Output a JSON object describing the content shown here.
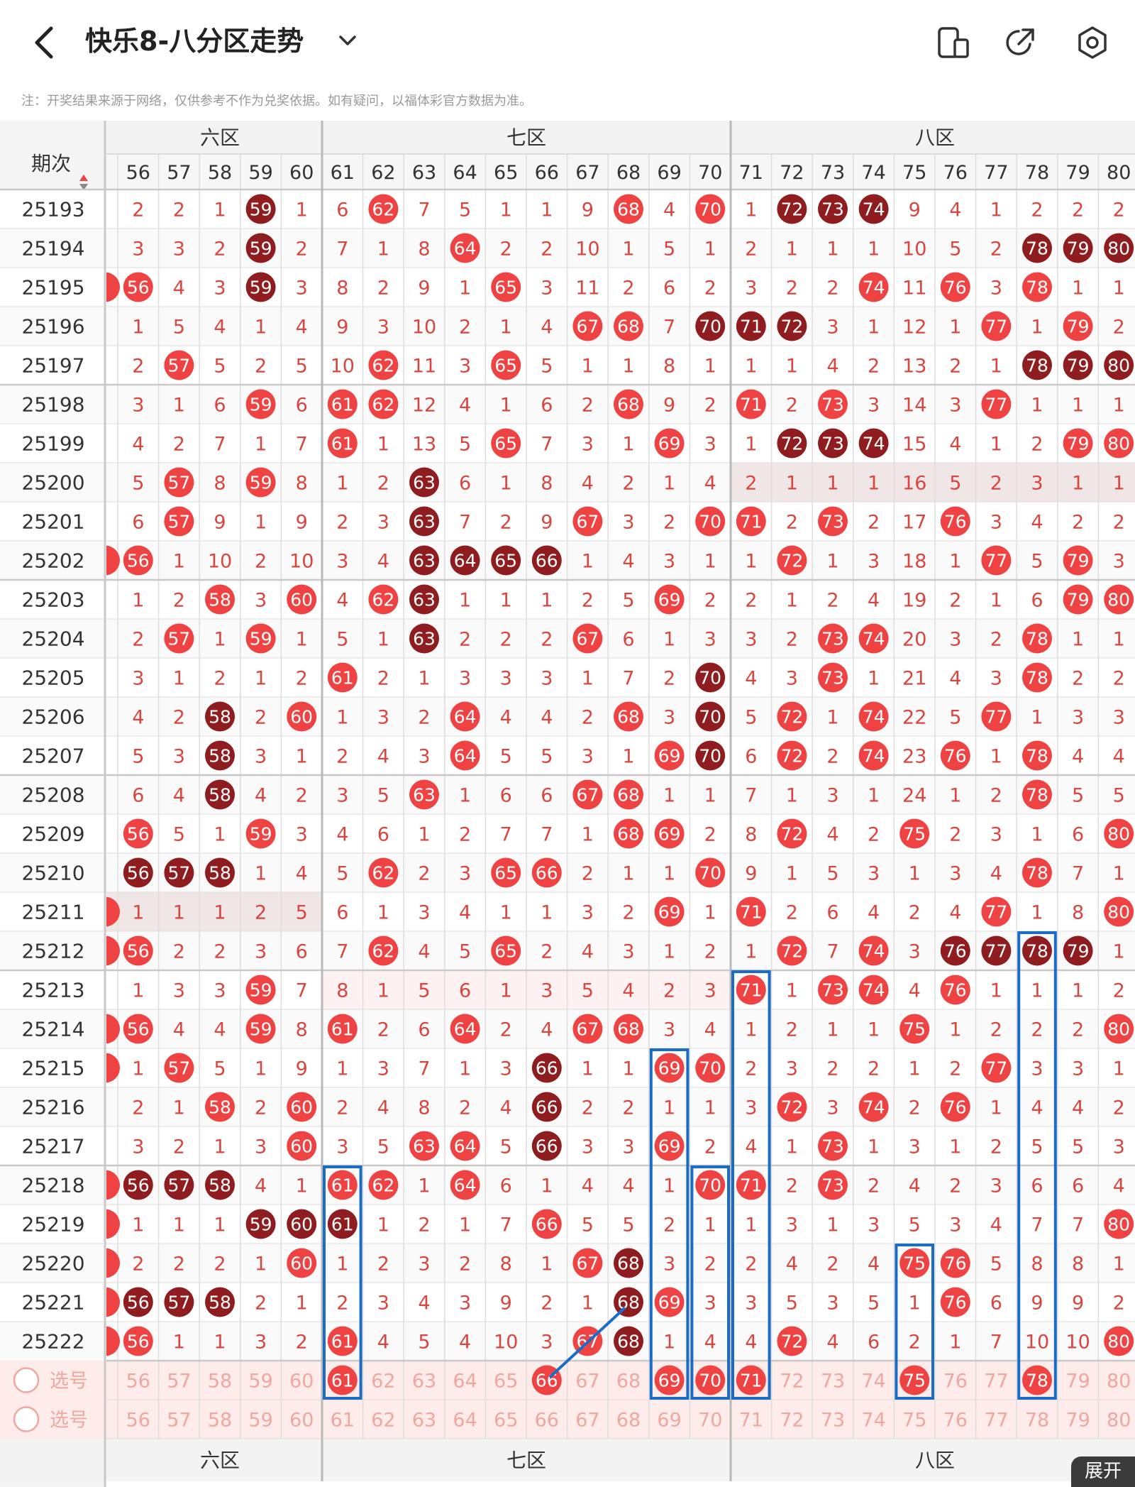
{
  "header": {
    "title": "快乐8-八分区走势",
    "notice": "注：开奖结果来源于网络，仅供参考不作为兑奖依据。如有疑问，以福体彩官方数据为准。",
    "icons": [
      "back-icon",
      "chevron-down-icon",
      "device-icon",
      "share-icon",
      "settings-icon"
    ]
  },
  "table": {
    "col_header_label": "期次",
    "zones": [
      {
        "label": "六区",
        "start": 56,
        "end": 60
      },
      {
        "label": "七区",
        "start": 61,
        "end": 70
      },
      {
        "label": "八区",
        "start": 71,
        "end": 80
      }
    ],
    "numbers": [
      56,
      57,
      58,
      59,
      60,
      61,
      62,
      63,
      64,
      65,
      66,
      67,
      68,
      69,
      70,
      71,
      72,
      73,
      74,
      75,
      76,
      77,
      78,
      79,
      80
    ],
    "rows": [
      {
        "period": "25193",
        "cells": [
          "2",
          "2",
          "1",
          "59",
          "1",
          "6",
          "62",
          "7",
          "5",
          "1",
          "1",
          "9",
          "68",
          "4",
          "70",
          "1",
          "72",
          "73",
          "74",
          "9",
          "4",
          "1",
          "2",
          "2",
          "2"
        ],
        "repeat": [
          59,
          72,
          73,
          74
        ]
      },
      {
        "period": "25194",
        "cells": [
          "3",
          "3",
          "2",
          "59",
          "2",
          "7",
          "1",
          "8",
          "64",
          "2",
          "2",
          "10",
          "1",
          "5",
          "1",
          "2",
          "1",
          "1",
          "1",
          "10",
          "5",
          "2",
          "78",
          "79",
          "80"
        ],
        "repeat": [
          59,
          78,
          79,
          80
        ]
      },
      {
        "period": "25195",
        "cells": [
          "56",
          "4",
          "3",
          "59",
          "3",
          "8",
          "2",
          "9",
          "1",
          "65",
          "3",
          "11",
          "2",
          "6",
          "2",
          "3",
          "2",
          "2",
          "74",
          "11",
          "76",
          "3",
          "78",
          "1",
          "1"
        ],
        "repeat": [
          59
        ]
      },
      {
        "period": "25196",
        "cells": [
          "1",
          "5",
          "4",
          "1",
          "4",
          "9",
          "3",
          "10",
          "2",
          "1",
          "4",
          "67",
          "68",
          "7",
          "70",
          "71",
          "72",
          "3",
          "1",
          "12",
          "1",
          "77",
          "1",
          "79",
          "2"
        ],
        "repeat": [
          70,
          71,
          72
        ]
      },
      {
        "period": "25197",
        "cells": [
          "2",
          "57",
          "5",
          "2",
          "5",
          "10",
          "62",
          "11",
          "3",
          "65",
          "5",
          "1",
          "1",
          "8",
          "1",
          "1",
          "1",
          "4",
          "2",
          "13",
          "2",
          "1",
          "78",
          "79",
          "80"
        ],
        "repeat": [
          78,
          79,
          80
        ]
      },
      {
        "period": "25198",
        "cells": [
          "3",
          "1",
          "6",
          "59",
          "6",
          "61",
          "62",
          "12",
          "4",
          "1",
          "6",
          "2",
          "68",
          "9",
          "2",
          "71",
          "2",
          "73",
          "3",
          "14",
          "3",
          "77",
          "1",
          "1",
          "1"
        ],
        "repeat": []
      },
      {
        "period": "25199",
        "cells": [
          "4",
          "2",
          "7",
          "1",
          "7",
          "61",
          "1",
          "13",
          "5",
          "65",
          "7",
          "3",
          "1",
          "69",
          "3",
          "1",
          "72",
          "73",
          "74",
          "15",
          "4",
          "1",
          "2",
          "79",
          "80"
        ],
        "repeat": [
          72,
          73,
          74
        ]
      },
      {
        "period": "25200",
        "cells": [
          "5",
          "57",
          "8",
          "59",
          "8",
          "1",
          "2",
          "63",
          "6",
          "1",
          "8",
          "4",
          "2",
          "1",
          "4",
          "2",
          "1",
          "1",
          "1",
          "16",
          "5",
          "2",
          "3",
          "1",
          "1"
        ],
        "repeat": [
          63
        ]
      },
      {
        "period": "25201",
        "cells": [
          "6",
          "57",
          "9",
          "1",
          "9",
          "2",
          "3",
          "63",
          "7",
          "2",
          "9",
          "67",
          "3",
          "2",
          "70",
          "71",
          "2",
          "73",
          "2",
          "17",
          "76",
          "3",
          "4",
          "2",
          "2"
        ],
        "repeat": [
          63
        ]
      },
      {
        "period": "25202",
        "cells": [
          "56",
          "1",
          "10",
          "2",
          "10",
          "3",
          "4",
          "63",
          "64",
          "65",
          "66",
          "1",
          "4",
          "3",
          "1",
          "1",
          "72",
          "1",
          "3",
          "18",
          "1",
          "77",
          "5",
          "79",
          "3"
        ],
        "repeat": [
          63,
          64,
          65,
          66
        ]
      },
      {
        "period": "25203",
        "cells": [
          "1",
          "2",
          "58",
          "3",
          "60",
          "4",
          "62",
          "63",
          "1",
          "1",
          "1",
          "2",
          "5",
          "69",
          "2",
          "2",
          "1",
          "2",
          "4",
          "19",
          "2",
          "1",
          "6",
          "79",
          "80"
        ],
        "repeat": [
          63
        ]
      },
      {
        "period": "25204",
        "cells": [
          "2",
          "57",
          "1",
          "59",
          "1",
          "5",
          "1",
          "63",
          "2",
          "2",
          "2",
          "67",
          "6",
          "1",
          "3",
          "3",
          "2",
          "73",
          "74",
          "20",
          "3",
          "2",
          "78",
          "1",
          "1"
        ],
        "repeat": [
          63
        ]
      },
      {
        "period": "25205",
        "cells": [
          "3",
          "1",
          "2",
          "1",
          "2",
          "61",
          "2",
          "1",
          "3",
          "3",
          "3",
          "1",
          "7",
          "2",
          "70",
          "4",
          "3",
          "73",
          "1",
          "21",
          "4",
          "3",
          "78",
          "2",
          "2"
        ],
        "repeat": [
          70
        ]
      },
      {
        "period": "25206",
        "cells": [
          "4",
          "2",
          "58",
          "2",
          "60",
          "1",
          "3",
          "2",
          "64",
          "4",
          "4",
          "2",
          "68",
          "3",
          "70",
          "5",
          "72",
          "1",
          "74",
          "22",
          "5",
          "77",
          "1",
          "3",
          "3"
        ],
        "repeat": [
          58,
          70
        ]
      },
      {
        "period": "25207",
        "cells": [
          "5",
          "3",
          "58",
          "3",
          "1",
          "2",
          "4",
          "3",
          "64",
          "5",
          "5",
          "3",
          "1",
          "69",
          "70",
          "6",
          "72",
          "2",
          "74",
          "23",
          "76",
          "1",
          "78",
          "4",
          "4"
        ],
        "repeat": [
          58,
          70
        ]
      },
      {
        "period": "25208",
        "cells": [
          "6",
          "4",
          "58",
          "4",
          "2",
          "3",
          "5",
          "63",
          "1",
          "6",
          "6",
          "67",
          "68",
          "1",
          "1",
          "7",
          "1",
          "3",
          "1",
          "24",
          "1",
          "2",
          "78",
          "5",
          "5"
        ],
        "repeat": [
          58
        ]
      },
      {
        "period": "25209",
        "cells": [
          "56",
          "5",
          "1",
          "59",
          "3",
          "4",
          "6",
          "1",
          "2",
          "7",
          "7",
          "1",
          "68",
          "69",
          "2",
          "8",
          "72",
          "4",
          "2",
          "75",
          "2",
          "3",
          "1",
          "6",
          "80"
        ],
        "repeat": []
      },
      {
        "period": "25210",
        "cells": [
          "56",
          "57",
          "58",
          "1",
          "4",
          "5",
          "62",
          "2",
          "3",
          "65",
          "66",
          "2",
          "1",
          "1",
          "70",
          "9",
          "1",
          "5",
          "3",
          "1",
          "3",
          "4",
          "78",
          "7",
          "1"
        ],
        "repeat": [
          56,
          57,
          58
        ]
      },
      {
        "period": "25211",
        "cells": [
          "1",
          "1",
          "1",
          "2",
          "5",
          "6",
          "1",
          "3",
          "4",
          "1",
          "1",
          "3",
          "2",
          "69",
          "1",
          "71",
          "2",
          "6",
          "4",
          "2",
          "4",
          "77",
          "1",
          "8",
          "80"
        ],
        "repeat": []
      },
      {
        "period": "25212",
        "cells": [
          "56",
          "2",
          "2",
          "3",
          "6",
          "7",
          "62",
          "4",
          "5",
          "65",
          "2",
          "4",
          "3",
          "1",
          "2",
          "1",
          "72",
          "7",
          "74",
          "3",
          "76",
          "77",
          "78",
          "79",
          "1"
        ],
        "repeat": [
          76,
          77,
          78,
          79
        ]
      },
      {
        "period": "25213",
        "cells": [
          "1",
          "3",
          "3",
          "59",
          "7",
          "8",
          "1",
          "5",
          "6",
          "1",
          "3",
          "5",
          "4",
          "2",
          "3",
          "71",
          "1",
          "73",
          "74",
          "4",
          "76",
          "1",
          "1",
          "1",
          "2"
        ],
        "repeat": []
      },
      {
        "period": "25214",
        "cells": [
          "56",
          "4",
          "4",
          "59",
          "8",
          "61",
          "2",
          "6",
          "64",
          "2",
          "4",
          "67",
          "68",
          "3",
          "4",
          "1",
          "2",
          "1",
          "1",
          "75",
          "1",
          "2",
          "2",
          "2",
          "80"
        ],
        "repeat": []
      },
      {
        "period": "25215",
        "cells": [
          "1",
          "57",
          "5",
          "1",
          "9",
          "1",
          "3",
          "7",
          "1",
          "3",
          "66",
          "1",
          "1",
          "69",
          "70",
          "2",
          "3",
          "2",
          "2",
          "1",
          "2",
          "77",
          "3",
          "3",
          "1"
        ],
        "repeat": [
          66
        ]
      },
      {
        "period": "25216",
        "cells": [
          "2",
          "1",
          "58",
          "2",
          "60",
          "2",
          "4",
          "8",
          "2",
          "4",
          "66",
          "2",
          "2",
          "1",
          "1",
          "3",
          "72",
          "3",
          "74",
          "2",
          "76",
          "1",
          "4",
          "4",
          "2"
        ],
        "repeat": [
          66
        ]
      },
      {
        "period": "25217",
        "cells": [
          "3",
          "2",
          "1",
          "3",
          "60",
          "3",
          "5",
          "63",
          "64",
          "5",
          "66",
          "3",
          "3",
          "69",
          "2",
          "4",
          "1",
          "73",
          "1",
          "3",
          "1",
          "2",
          "5",
          "5",
          "3"
        ],
        "repeat": [
          66
        ]
      },
      {
        "period": "25218",
        "cells": [
          "56",
          "57",
          "58",
          "4",
          "1",
          "61",
          "62",
          "1",
          "64",
          "6",
          "1",
          "4",
          "4",
          "1",
          "70",
          "71",
          "2",
          "73",
          "2",
          "4",
          "2",
          "3",
          "6",
          "6",
          "4"
        ],
        "repeat": [
          56,
          57,
          58
        ]
      },
      {
        "period": "25219",
        "cells": [
          "1",
          "1",
          "1",
          "59",
          "60",
          "61",
          "1",
          "2",
          "1",
          "7",
          "66",
          "5",
          "5",
          "2",
          "1",
          "1",
          "3",
          "1",
          "3",
          "5",
          "3",
          "4",
          "7",
          "7",
          "80"
        ],
        "repeat": [
          59,
          60,
          61
        ]
      },
      {
        "period": "25220",
        "cells": [
          "2",
          "2",
          "2",
          "1",
          "60",
          "1",
          "2",
          "3",
          "2",
          "8",
          "1",
          "67",
          "68",
          "3",
          "2",
          "2",
          "4",
          "2",
          "4",
          "75",
          "76",
          "5",
          "8",
          "8",
          "1"
        ],
        "repeat": [
          68
        ]
      },
      {
        "period": "25221",
        "cells": [
          "56",
          "57",
          "58",
          "2",
          "1",
          "2",
          "3",
          "4",
          "3",
          "9",
          "2",
          "1",
          "68",
          "69",
          "3",
          "3",
          "5",
          "3",
          "5",
          "1",
          "76",
          "6",
          "9",
          "9",
          "2"
        ],
        "repeat": [
          56,
          57,
          58,
          68
        ]
      },
      {
        "period": "25222",
        "cells": [
          "56",
          "1",
          "1",
          "3",
          "2",
          "61",
          "4",
          "5",
          "4",
          "10",
          "3",
          "67",
          "68",
          "1",
          "4",
          "4",
          "72",
          "4",
          "6",
          "2",
          "1",
          "7",
          "10",
          "10",
          "80"
        ],
        "repeat": [
          68
        ]
      }
    ],
    "select_label": "选号",
    "pick_row": [
      61,
      66,
      69,
      70,
      71,
      75,
      78
    ],
    "expand_label": "展开"
  },
  "colors": {
    "hit": "#ef4343",
    "repeat": "#8f1d1f",
    "miss_text": "#d9463f",
    "grid": "#dddddd",
    "zone_line": "#b9b9b9",
    "highlight_box": "#1a6cc4",
    "select_row_bg": "#fdecea"
  }
}
